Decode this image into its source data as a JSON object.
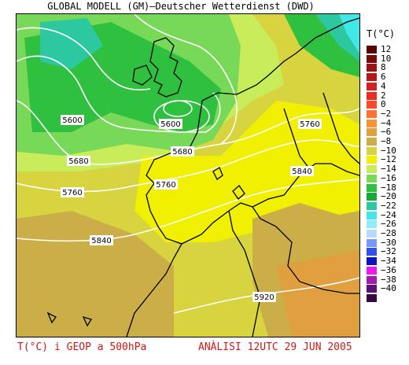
{
  "header": {
    "title": "GLOBAL MODELL (GM)–Deutscher Wetterdienst (DWD)"
  },
  "legend": {
    "title": "T(°C)",
    "items": [
      {
        "label": "12",
        "color": "#5a0000"
      },
      {
        "label": "10",
        "color": "#7a0a0a"
      },
      {
        "label": "8",
        "color": "#9a1212"
      },
      {
        "label": "6",
        "color": "#b81818"
      },
      {
        "label": "4",
        "color": "#d42020"
      },
      {
        "label": "2",
        "color": "#ec2c20"
      },
      {
        "label": "0",
        "color": "#ff4a2a"
      },
      {
        "label": "−2",
        "color": "#ff7436"
      },
      {
        "label": "−4",
        "color": "#f89238"
      },
      {
        "label": "−6",
        "color": "#e0a040"
      },
      {
        "label": "−8",
        "color": "#ccae48"
      },
      {
        "label": "−10",
        "color": "#d8d440"
      },
      {
        "label": "−12",
        "color": "#f0f000"
      },
      {
        "label": "−14",
        "color": "#c8ec5a"
      },
      {
        "label": "−16",
        "color": "#78d858"
      },
      {
        "label": "−18",
        "color": "#30c040"
      },
      {
        "label": "−20",
        "color": "#18a838"
      },
      {
        "label": "−22",
        "color": "#2cc8a0"
      },
      {
        "label": "−24",
        "color": "#40e8e8"
      },
      {
        "label": "−26",
        "color": "#90ecf8"
      },
      {
        "label": "−28",
        "color": "#b8d8ff"
      },
      {
        "label": "−30",
        "color": "#7898f8"
      },
      {
        "label": "−32",
        "color": "#3050f0"
      },
      {
        "label": "−34",
        "color": "#1010c8"
      },
      {
        "label": "−36",
        "color": "#f018f0"
      },
      {
        "label": "−38",
        "color": "#a818b0"
      },
      {
        "label": "−40",
        "color": "#601070"
      },
      {
        "label": "",
        "color": "#380840"
      }
    ]
  },
  "map": {
    "contour_labels": [
      "5600",
      "5600",
      "5680",
      "5680",
      "5760",
      "5760",
      "5760",
      "5840",
      "5840",
      "5920"
    ]
  },
  "footer": {
    "left": "T(°C) i GEOP a 500hPa",
    "right": "ANÀLISI 12UTC 29 JUN 2005"
  }
}
